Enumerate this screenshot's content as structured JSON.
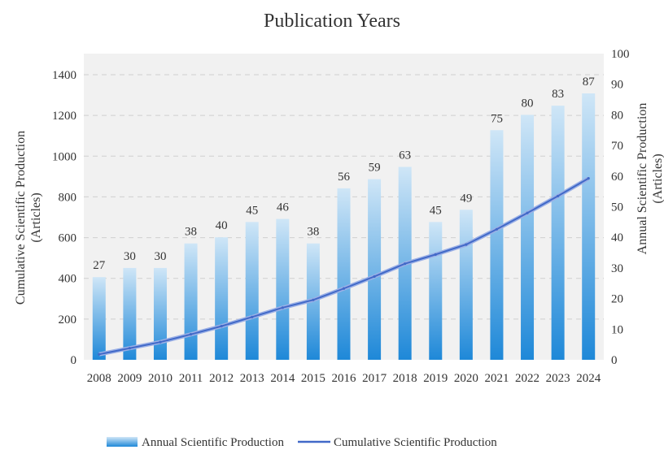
{
  "chart_data": {
    "type": "bar",
    "title": "Publication Years",
    "ylabel_left": "Cumulative Scientific Production (Articles)",
    "ylabel_left_lines": [
      "Cumulative Scientific Production",
      "(Articles)"
    ],
    "ylabel_right": "Annual Scientific Production (Articles)",
    "ylabel_right_lines": [
      "Annual Scientific Production",
      "(Articles)"
    ],
    "categories": [
      "2008",
      "2009",
      "2010",
      "2011",
      "2012",
      "2013",
      "2014",
      "2015",
      "2016",
      "2017",
      "2018",
      "2019",
      "2020",
      "2021",
      "2022",
      "2023",
      "2024"
    ],
    "series": [
      {
        "name": "Annual Scientific Production",
        "type": "bar",
        "axis": "right",
        "values": [
          27,
          30,
          30,
          38,
          40,
          45,
          46,
          38,
          56,
          59,
          63,
          45,
          49,
          75,
          80,
          83,
          87
        ]
      },
      {
        "name": "Cumulative Scientific Production",
        "type": "line",
        "axis": "left",
        "values": [
          27,
          57,
          87,
          125,
          165,
          210,
          256,
          294,
          350,
          409,
          472,
          517,
          566,
          641,
          721,
          804,
          891
        ]
      }
    ],
    "ylim_left": [
      0,
      1400
    ],
    "yticks_left": [
      0,
      200,
      400,
      600,
      800,
      1000,
      1200,
      1400
    ],
    "ylim_right": [
      0,
      100
    ],
    "yticks_right": [
      0,
      10,
      20,
      30,
      40,
      50,
      60,
      70,
      80,
      90,
      100
    ],
    "grid": true,
    "legend_position": "bottom",
    "colors": {
      "bar_top": "#cfe6f7",
      "bar_bottom": "#1e88d8",
      "line": "#4169c8",
      "plot_bg": "#f1f1f1",
      "grid": "#cfcfcf"
    }
  }
}
